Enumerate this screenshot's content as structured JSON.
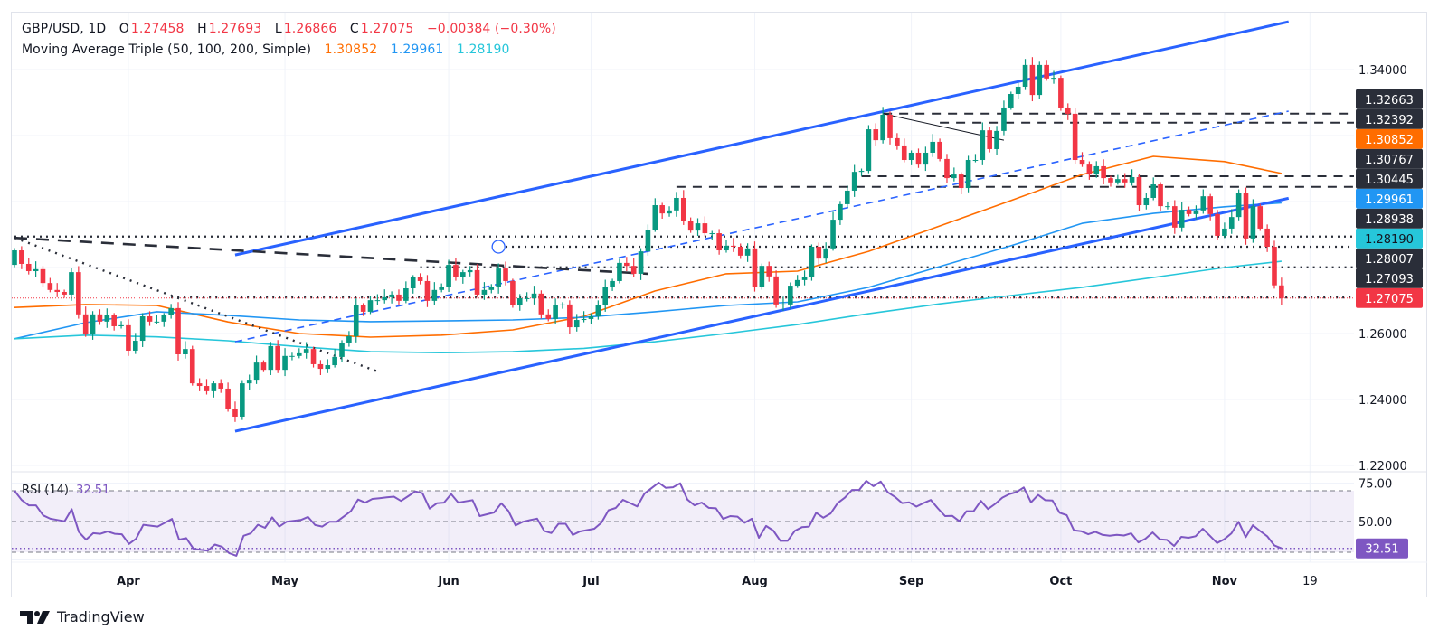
{
  "header": {
    "symbol": "GBP/USD, 1D",
    "o_label": "O",
    "o": "1.27458",
    "h_label": "H",
    "h": "1.27693",
    "l_label": "L",
    "l": "1.26866",
    "c_label": "C",
    "c": "1.27075",
    "change": "−0.00384 (−0.30%)",
    "ma_title": "Moving Average Triple (50, 100, 200, Simple)",
    "ma50": "1.30852",
    "ma100": "1.29961",
    "ma200": "1.28190"
  },
  "rsi_header": {
    "title": "RSI (14)",
    "value": "32.51"
  },
  "logo": {
    "text": "TradingView"
  },
  "colors": {
    "up": "#089981",
    "down": "#f23645",
    "ma50": "#ff6d00",
    "ma100": "#2196f3",
    "ma200": "#26c6da",
    "trend": "#2962ff",
    "rsi": "#7e57c2",
    "tag_dark": "#2a2e39",
    "drawing": "#2a2e39"
  },
  "chart_data": {
    "type": "candlestick",
    "symbol": "GBP/USD",
    "interval": "1D",
    "x_range": [
      "2024-03-08",
      "2024-11-13"
    ],
    "y_range": [
      1.215,
      1.362
    ],
    "grid": true,
    "y_ticks": [
      "1.22000",
      "1.24000",
      "1.26000",
      "1.28000",
      "1.30000",
      "1.32000",
      "1.34000"
    ],
    "x_ticks": [
      {
        "label": "Apr",
        "date": "2024-04-01"
      },
      {
        "label": "May",
        "date": "2024-05-01"
      },
      {
        "label": "Jun",
        "date": "2024-06-03"
      },
      {
        "label": "Jul",
        "date": "2024-07-01"
      },
      {
        "label": "Aug",
        "date": "2024-08-01"
      },
      {
        "label": "Sep",
        "date": "2024-09-02"
      },
      {
        "label": "Oct",
        "date": "2024-10-01"
      },
      {
        "label": "Nov",
        "date": "2024-11-01"
      },
      {
        "label": "19",
        "date": "2024-11-19"
      }
    ],
    "first_open": 1.2808,
    "last_bar": {
      "o": 1.27458,
      "h": 1.27693,
      "l": 1.26866,
      "c": 1.27075
    },
    "closes": [
      1.2852,
      1.2811,
      1.2789,
      1.2795,
      1.2753,
      1.2732,
      1.2726,
      1.2718,
      1.2786,
      1.2658,
      1.2597,
      1.2658,
      1.2636,
      1.2655,
      1.2622,
      1.2625,
      1.2548,
      1.2578,
      1.2652,
      1.2636,
      1.2636,
      1.2655,
      1.2677,
      1.2537,
      1.2553,
      1.2449,
      1.2441,
      1.2425,
      1.2449,
      1.2433,
      1.237,
      1.2348,
      1.2449,
      1.246,
      1.2512,
      1.249,
      1.2562,
      1.249,
      1.2532,
      1.2532,
      1.254,
      1.2553,
      1.2507,
      1.2493,
      1.2504,
      1.2529,
      1.257,
      1.2592,
      1.2685,
      1.2666,
      1.2701,
      1.2701,
      1.271,
      1.2718,
      1.2699,
      1.2737,
      1.277,
      1.2759,
      1.2699,
      1.2732,
      1.2742,
      1.2808,
      1.277,
      1.2786,
      1.2792,
      1.2718,
      1.2732,
      1.274,
      1.2797,
      1.2759,
      1.2685,
      1.2707,
      1.2707,
      1.2721,
      1.2658,
      1.2644,
      1.2685,
      1.2688,
      1.2619,
      1.2641,
      1.2644,
      1.2652,
      1.2685,
      1.2742,
      1.2759,
      1.2814,
      1.2805,
      1.2781,
      1.2849,
      1.2915,
      1.2989,
      1.2964,
      1.2973,
      1.3011,
      1.2942,
      1.2912,
      1.2934,
      1.2904,
      1.2904,
      1.2852,
      1.2866,
      1.2863,
      1.2836,
      1.2858,
      1.274,
      1.2805,
      1.2773,
      1.2688,
      1.2688,
      1.2745,
      1.2762,
      1.277,
      1.2863,
      1.2827,
      1.2858,
      1.2945,
      1.2992,
      1.3033,
      1.309,
      1.3093,
      1.3219,
      1.3186,
      1.3263,
      1.3192,
      1.317,
      1.3126,
      1.3148,
      1.3112,
      1.3148,
      1.3181,
      1.3129,
      1.3071,
      1.3082,
      1.3041,
      1.3126,
      1.3126,
      1.3216,
      1.3159,
      1.3214,
      1.3285,
      1.3326,
      1.3348,
      1.3414,
      1.3323,
      1.3414,
      1.3373,
      1.3375,
      1.3285,
      1.3266,
      1.3126,
      1.3112,
      1.3082,
      1.3107,
      1.3071,
      1.3058,
      1.3068,
      1.3058,
      1.3074,
      1.2989,
      1.3011,
      1.3052,
      1.2986,
      1.2986,
      1.2921,
      1.2975,
      1.2962,
      1.2973,
      1.3016,
      1.2962,
      1.2896,
      1.2918,
      1.2953,
      1.3027,
      1.2888,
      1.2986,
      1.2918,
      1.2863,
      1.2746,
      1.27075
    ],
    "moving_averages": [
      {
        "name": "SMA 50",
        "color": "#ff6d00",
        "value": "1.30852",
        "samples": [
          1.2679,
          1.2688,
          1.2685,
          1.2635,
          1.26,
          1.2589,
          1.2595,
          1.2611,
          1.2652,
          1.2729,
          1.2781,
          1.2789,
          1.2849,
          1.2926,
          1.3003,
          1.3082,
          1.3137,
          1.3121,
          1.30852
        ]
      },
      {
        "name": "SMA 100",
        "color": "#2196f3",
        "value": "1.29961",
        "samples": [
          1.2584,
          1.2633,
          1.2666,
          1.2655,
          1.2641,
          1.2636,
          1.2638,
          1.2641,
          1.2649,
          1.2666,
          1.2685,
          1.2696,
          1.274,
          1.2803,
          1.2866,
          1.2934,
          1.2964,
          1.2984,
          1.29961
        ]
      },
      {
        "name": "SMA 200",
        "color": "#26c6da",
        "value": "1.28190",
        "samples": [
          1.2584,
          1.2595,
          1.259,
          1.2578,
          1.256,
          1.2545,
          1.2542,
          1.2545,
          1.2555,
          1.2575,
          1.26,
          1.2627,
          1.266,
          1.269,
          1.2715,
          1.274,
          1.277,
          1.28,
          1.2819
        ]
      }
    ],
    "trendlines": [
      {
        "id": "upper-channel",
        "style": "solid",
        "color": "#2962ff",
        "from": [
          "2024-04-22",
          1.2838
        ],
        "to": [
          "2024-11-14",
          1.3545
        ]
      },
      {
        "id": "lower-channel",
        "style": "solid",
        "color": "#2962ff",
        "from": [
          "2024-04-22",
          1.2304
        ],
        "to": [
          "2024-11-14",
          1.301
        ]
      },
      {
        "id": "mid-channel",
        "style": "dashed",
        "color": "#2962ff",
        "from": [
          "2024-04-22",
          1.2575
        ],
        "to": [
          "2024-11-14",
          1.3274
        ]
      },
      {
        "id": "descending-dashed",
        "style": "dashed-thick",
        "color": "#2a2e39",
        "from": [
          "2024-03-08",
          1.289
        ],
        "to": [
          "2024-07-11",
          1.2781
        ]
      },
      {
        "id": "descending-dotted",
        "style": "dotted",
        "color": "#2a2e39",
        "from": [
          "2024-03-08",
          1.289
        ],
        "to": [
          "2024-05-20",
          1.2485
        ]
      },
      {
        "id": "peak-connector",
        "style": "thin",
        "color": "#131722",
        "from": [
          "2024-08-27",
          1.32663
        ],
        "to": [
          "2024-09-19",
          1.3186
        ]
      }
    ],
    "horizontal_levels": [
      {
        "price": 1.32663,
        "label": "1.32663",
        "style": "dashed",
        "from": "2024-08-27"
      },
      {
        "price": 1.32392,
        "label": "1.32392",
        "style": "dashed",
        "from": "2024-09-06"
      },
      {
        "price": 1.30767,
        "label": "1.30767",
        "style": "dashed",
        "from": "2024-08-22"
      },
      {
        "price": 1.30445,
        "label": "1.30445",
        "style": "dashed",
        "from": "2024-07-17"
      },
      {
        "price": 1.28938,
        "label": "1.28938",
        "style": "dotted",
        "from": "2024-03-08"
      },
      {
        "price": 1.2863,
        "label": "",
        "style": "dotted",
        "from": "2024-06-13"
      },
      {
        "price": 1.28007,
        "label": "1.28007",
        "style": "dotted",
        "from": "2024-05-28"
      },
      {
        "price": 1.27093,
        "label": "1.27093",
        "style": "dotted",
        "from": "2024-04-09"
      }
    ],
    "marker_circle": {
      "date": "2024-06-12",
      "price": 1.2863
    },
    "price_tags": [
      {
        "label": "1.32663",
        "price": 1.32663,
        "bg": "#2a2e39",
        "fg": "#ffffff"
      },
      {
        "label": "1.32392",
        "price": 1.32392,
        "bg": "#2a2e39",
        "fg": "#ffffff"
      },
      {
        "label": "1.30852",
        "price": 1.30852,
        "bg": "#ff6d00",
        "fg": "#ffffff"
      },
      {
        "label": "1.30767",
        "price": 1.30767,
        "bg": "#2a2e39",
        "fg": "#ffffff"
      },
      {
        "label": "1.30445",
        "price": 1.30445,
        "bg": "#2a2e39",
        "fg": "#ffffff"
      },
      {
        "label": "1.29961",
        "price": 1.29961,
        "bg": "#2196f3",
        "fg": "#ffffff"
      },
      {
        "label": "1.28938",
        "price": 1.28938,
        "bg": "#2a2e39",
        "fg": "#ffffff"
      },
      {
        "label": "1.28190",
        "price": 1.2819,
        "bg": "#26c6da",
        "fg": "#131722"
      },
      {
        "label": "1.28007",
        "price": 1.28007,
        "bg": "#2a2e39",
        "fg": "#ffffff"
      },
      {
        "label": "1.27093",
        "price": 1.27093,
        "bg": "#2a2e39",
        "fg": "#ffffff"
      },
      {
        "label": "1.27075",
        "price": 1.27075,
        "bg": "#f23645",
        "fg": "#ffffff"
      }
    ],
    "rsi": {
      "period": 14,
      "levels": [
        70,
        50,
        30
      ],
      "y_ticks": [
        "75.00",
        "50.00",
        "25.00"
      ],
      "current": 32.51,
      "current_label": "32.51",
      "values": [
        70,
        64,
        60.5,
        60.5,
        54,
        51.8,
        51,
        50.2,
        58,
        43.2,
        38.2,
        42.4,
        42,
        43.5,
        42,
        41.7,
        35.4,
        38.8,
        47.9,
        47.3,
        46.7,
        49.2,
        51.7,
        38.2,
        39.2,
        32.3,
        31.6,
        31,
        35,
        33.5,
        29.4,
        27.7,
        40.7,
        42.3,
        47.9,
        45.9,
        52.7,
        46.7,
        49.8,
        50.4,
        51,
        53,
        47.7,
        46.7,
        49.8,
        49.8,
        53.3,
        56.8,
        64.3,
        62.3,
        64.7,
        65.2,
        65.7,
        66.2,
        63.4,
        66.5,
        69.6,
        68.4,
        58.4,
        61.9,
        62.3,
        67.9,
        62.3,
        63.1,
        63.9,
        53.5,
        54.7,
        55.9,
        61.9,
        56.9,
        47.5,
        49.8,
        50.9,
        51.9,
        43.9,
        42.5,
        48.5,
        48.5,
        41.3,
        43.5,
        44.4,
        45.3,
        49.3,
        57.4,
        58.8,
        64.1,
        62,
        59.8,
        68.1,
        71.7,
        75.3,
        71.9,
        72.3,
        74.9,
        64.3,
        60.5,
        62.3,
        58.9,
        58.6,
        51.7,
        53.5,
        53.2,
        49.2,
        51.8,
        39.4,
        47.1,
        44.1,
        37.4,
        37.4,
        43.9,
        46.3,
        46.7,
        55.7,
        52.5,
        55.1,
        62,
        65.5,
        70.5,
        70.5,
        76.5,
        73,
        76,
        69,
        66,
        62,
        62.5,
        59.7,
        62,
        64,
        58.5,
        53.5,
        53.7,
        50.2,
        56.7,
        56.7,
        63.4,
        58.1,
        61.5,
        65.5,
        67.9,
        69.2,
        72.2,
        62.5,
        67.3,
        63.9,
        63.7,
        55.7,
        54.1,
        44.3,
        43.7,
        41.7,
        43.3,
        41.3,
        40.7,
        41.3,
        40.9,
        42.3,
        36.4,
        38.8,
        42.9,
        38.4,
        38,
        34.1,
        40,
        39.4,
        40.4,
        45.3,
        40.7,
        36,
        38.4,
        42.3,
        49.8,
        39.8,
        47.6,
        43.9,
        40.4,
        34.5,
        32.51
      ]
    }
  }
}
